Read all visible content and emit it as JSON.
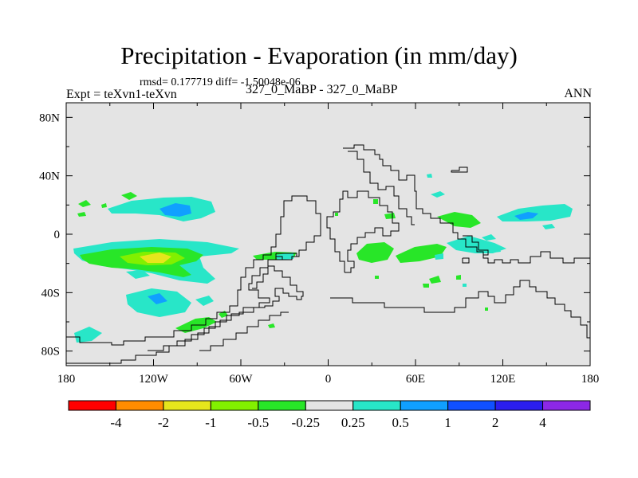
{
  "title": "Precipitation - Evaporation (in mm/day)",
  "stats": "rmsd= 0.177719 diff= -1.50048e-06",
  "left_label": "Expt = teXvn1-teXvn",
  "center_label": "327_0_MaBP - 327_0_MaBP",
  "right_label": "ANN",
  "map": {
    "background_color": "#e4e4e4",
    "lat_ticks": [
      "80N",
      "40N",
      "0",
      "40S",
      "80S"
    ],
    "lon_ticks": [
      "180",
      "120W",
      "60W",
      "0",
      "60E",
      "120E",
      "180"
    ]
  },
  "colorbar": {
    "colors": [
      "#ff0000",
      "#ff8c00",
      "#e6e61c",
      "#82f000",
      "#28e628",
      "#e4e4e4",
      "#28e6c8",
      "#10a0ff",
      "#1050ff",
      "#2b1eee",
      "#8c28e6"
    ],
    "labels": [
      "-4",
      "-2",
      "-1",
      "-0.5",
      "-0.25",
      "0.25",
      "0.5",
      "1",
      "2",
      "4"
    ]
  }
}
